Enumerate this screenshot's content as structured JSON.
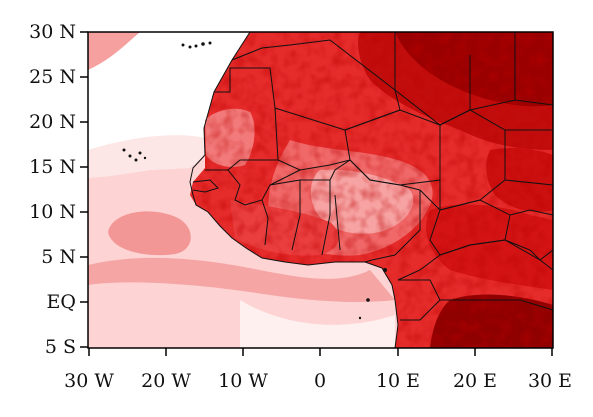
{
  "map": {
    "lat_labels": [
      "30 N",
      "25 N",
      "20 N",
      "15 N",
      "10 N",
      "5 N",
      "EQ",
      "5 S"
    ],
    "lon_labels": [
      "30 W",
      "20 W",
      "10 W",
      "0",
      "10 E",
      "20 E",
      "30 E"
    ],
    "lat_range": [
      -5,
      30
    ],
    "lon_range": [
      -30,
      30
    ],
    "palette": [
      "#ffffff",
      "#fde0e0",
      "#f8aaaa",
      "#f27474",
      "#ee3a3a",
      "#e40f0f",
      "#bf0000",
      "#8e0000"
    ]
  }
}
